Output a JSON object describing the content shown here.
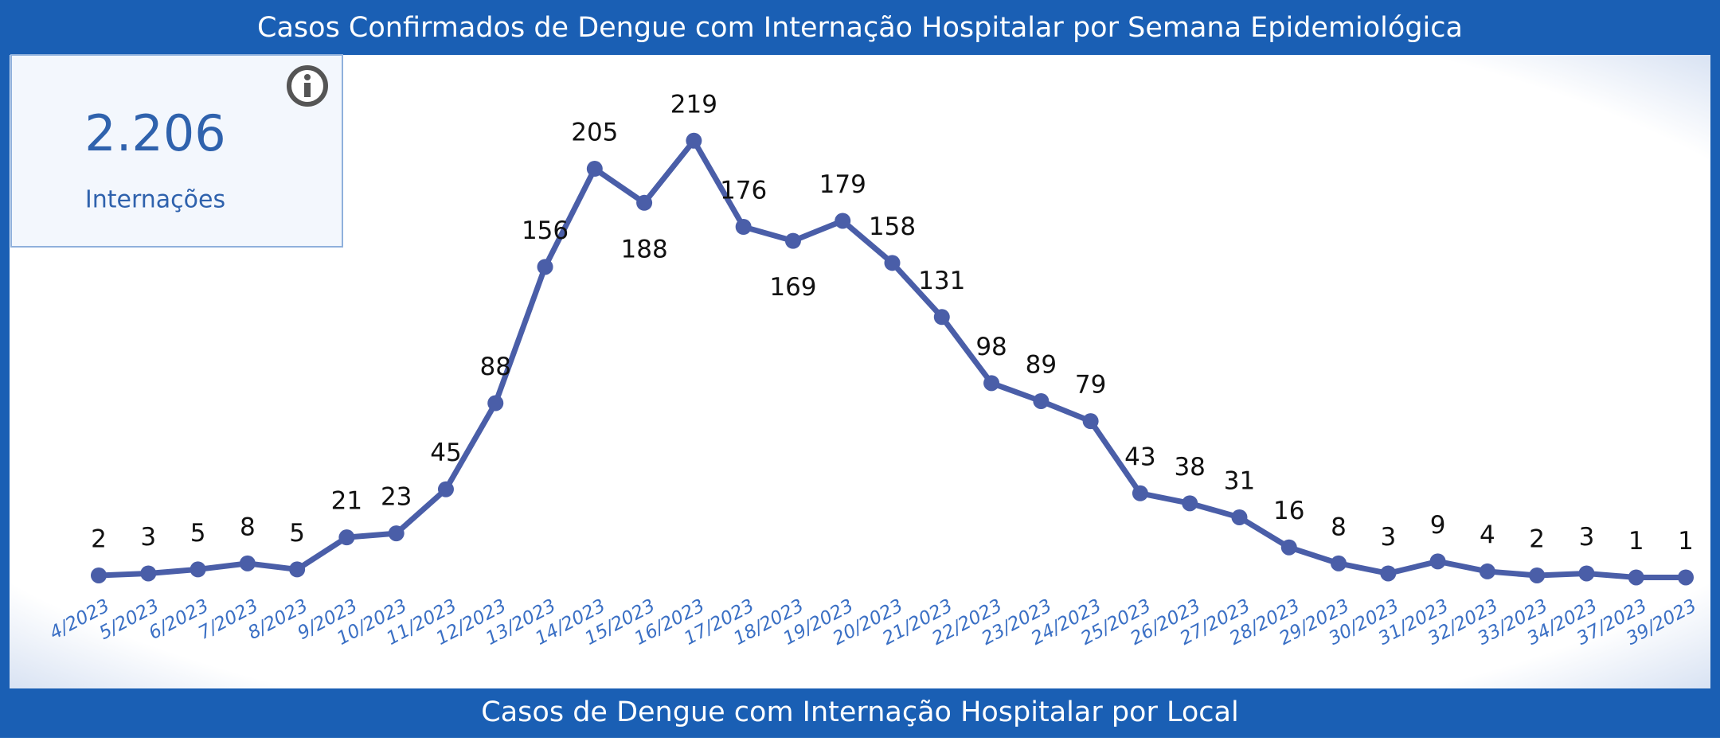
{
  "chart_data": {
    "type": "line",
    "title": "Casos Confirmados de Dengue com Internação Hospitalar por Semana Epidemiológica",
    "categories": [
      "4/2023",
      "5/2023",
      "6/2023",
      "7/2023",
      "8/2023",
      "9/2023",
      "10/2023",
      "11/2023",
      "12/2023",
      "13/2023",
      "14/2023",
      "15/2023",
      "16/2023",
      "17/2023",
      "18/2023",
      "19/2023",
      "20/2023",
      "21/2023",
      "22/2023",
      "23/2023",
      "24/2023",
      "25/2023",
      "26/2023",
      "27/2023",
      "28/2023",
      "29/2023",
      "30/2023",
      "31/2023",
      "32/2023",
      "33/2023",
      "34/2023",
      "37/2023",
      "39/2023"
    ],
    "values": [
      2,
      3,
      5,
      8,
      5,
      21,
      23,
      45,
      88,
      156,
      205,
      188,
      219,
      176,
      169,
      179,
      158,
      131,
      98,
      89,
      79,
      43,
      38,
      31,
      16,
      8,
      3,
      9,
      4,
      2,
      3,
      1,
      1
    ],
    "color": "#4a5ea8"
  },
  "kpi": {
    "value": "2.206",
    "label": "Internações"
  },
  "next_section": {
    "title": "Casos de Dengue com Internação Hospitalar por Local"
  }
}
